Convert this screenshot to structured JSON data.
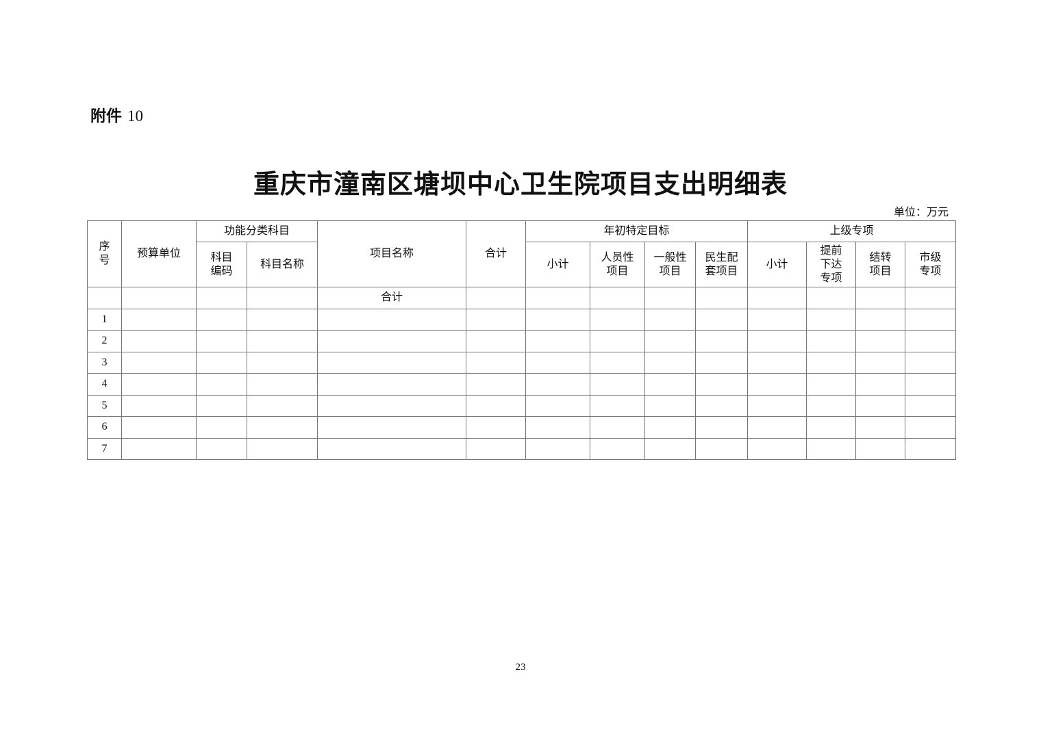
{
  "attachment": {
    "label": "附件",
    "number": "10"
  },
  "title": "重庆市潼南区塘坝中心卫生院项目支出明细表",
  "unit": "单位：万元",
  "table": {
    "headers": {
      "seq": "序号",
      "budget_unit": "预算单位",
      "func_class": "功能分类科目",
      "subject_code": "科目编码",
      "subject_name": "科目名称",
      "project_name": "项目名称",
      "total": "合计",
      "annual_target": "年初特定目标",
      "at_subtotal": "小计",
      "at_personnel": "人员性项目",
      "at_general": "一般性项目",
      "at_livelihood": "民生配套项目",
      "superior": "上级专项",
      "sp_subtotal": "小计",
      "sp_advance": "提前下达专项",
      "sp_carryover": "结转项目",
      "sp_city": "市级专项"
    },
    "total_row_label": "合计",
    "rows": [
      "1",
      "2",
      "3",
      "4",
      "5",
      "6",
      "7"
    ]
  },
  "page_number": "23"
}
